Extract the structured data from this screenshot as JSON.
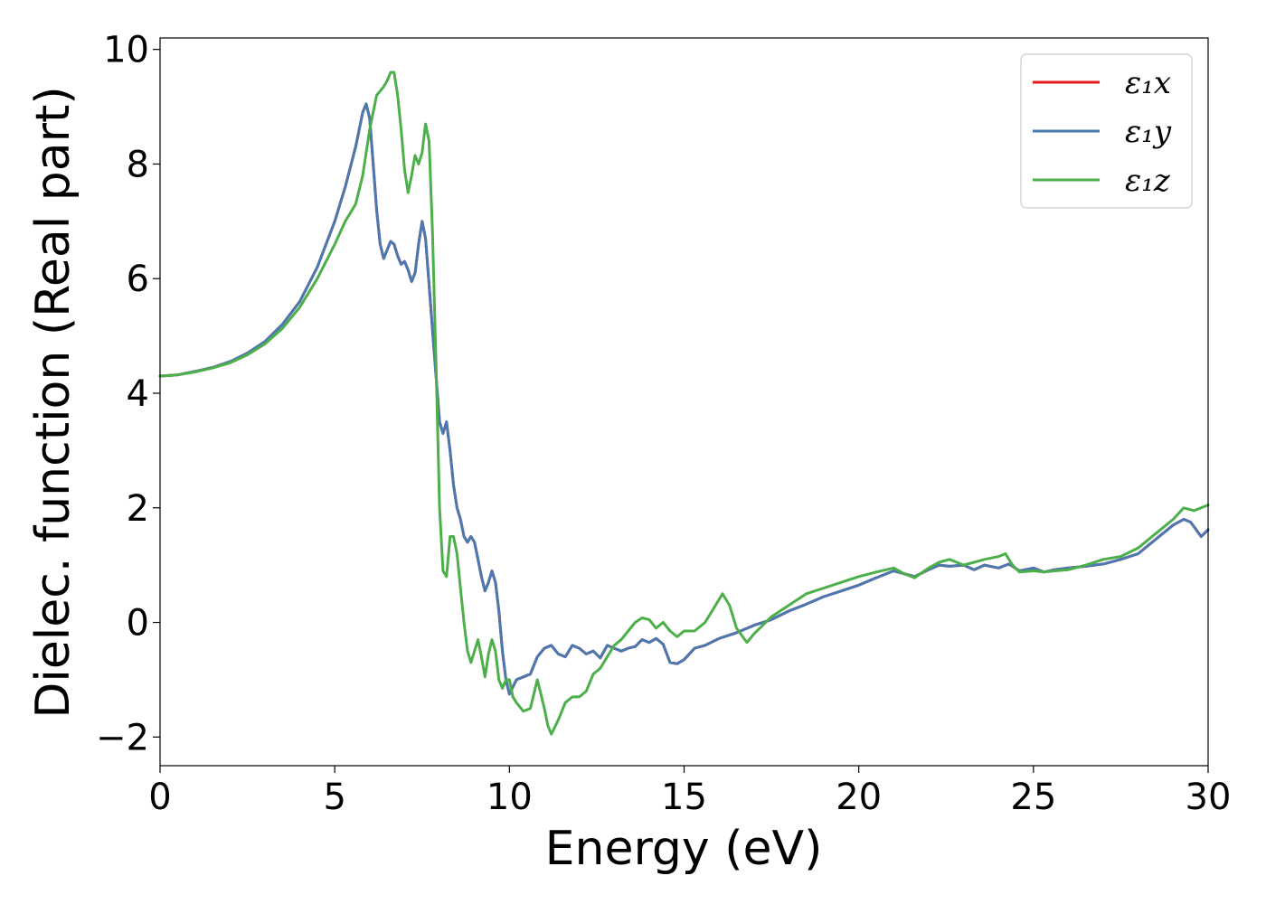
{
  "chart_data": {
    "type": "line",
    "xlabel": "Energy (eV)",
    "ylabel": "Dielec. function (Real part)",
    "xlim": [
      0,
      30
    ],
    "ylim": [
      -2.5,
      10.2
    ],
    "xticks": [
      0,
      5,
      10,
      15,
      20,
      25,
      30
    ],
    "xtick_labels": [
      "0",
      "5",
      "10",
      "15",
      "20",
      "25",
      "30"
    ],
    "yticks": [
      -2,
      0,
      2,
      4,
      6,
      8,
      10
    ],
    "ytick_labels": [
      "−2",
      "0",
      "2",
      "4",
      "6",
      "8",
      "10"
    ],
    "grid": false,
    "legend_position": "top-right",
    "series": [
      {
        "name": "ε₁x",
        "color": "#e41a1c",
        "x": [
          0,
          0.5,
          1,
          1.5,
          2,
          2.5,
          3,
          3.5,
          4,
          4.5,
          5,
          5.3,
          5.6,
          5.8,
          5.9,
          6.0,
          6.1,
          6.2,
          6.3,
          6.4,
          6.5,
          6.6,
          6.7,
          6.8,
          6.9,
          7.0,
          7.1,
          7.2,
          7.3,
          7.4,
          7.5,
          7.6,
          7.7,
          7.8,
          7.9,
          8.0,
          8.1,
          8.2,
          8.3,
          8.4,
          8.5,
          8.6,
          8.7,
          8.8,
          8.9,
          9.0,
          9.1,
          9.2,
          9.3,
          9.4,
          9.5,
          9.6,
          9.7,
          9.8,
          9.9,
          10.0,
          10.2,
          10.4,
          10.6,
          10.8,
          11.0,
          11.2,
          11.4,
          11.6,
          11.8,
          12.0,
          12.2,
          12.4,
          12.6,
          12.8,
          13.0,
          13.2,
          13.4,
          13.6,
          13.8,
          14.0,
          14.2,
          14.4,
          14.6,
          14.8,
          15.0,
          15.3,
          15.6,
          16.0,
          16.5,
          17.0,
          17.5,
          18.0,
          18.5,
          19.0,
          19.5,
          20.0,
          20.5,
          21.0,
          21.3,
          21.6,
          22.0,
          22.3,
          22.6,
          23.0,
          23.3,
          23.6,
          24.0,
          24.3,
          24.6,
          25.0,
          25.3,
          25.6,
          26.0,
          26.5,
          27.0,
          27.5,
          28.0,
          28.5,
          29.0,
          29.3,
          29.5,
          29.8,
          30.0
        ],
        "y": [
          4.3,
          4.32,
          4.38,
          4.45,
          4.55,
          4.7,
          4.9,
          5.2,
          5.6,
          6.2,
          7.0,
          7.6,
          8.3,
          8.9,
          9.05,
          8.8,
          8.0,
          7.2,
          6.6,
          6.35,
          6.5,
          6.65,
          6.6,
          6.4,
          6.25,
          6.3,
          6.15,
          5.95,
          6.1,
          6.6,
          7.0,
          6.7,
          5.9,
          5.1,
          4.3,
          3.5,
          3.3,
          3.5,
          3.0,
          2.4,
          2.0,
          1.8,
          1.5,
          1.4,
          1.5,
          1.4,
          1.1,
          0.8,
          0.55,
          0.7,
          0.9,
          0.7,
          0.2,
          -0.5,
          -1.0,
          -1.25,
          -1.0,
          -0.95,
          -0.9,
          -0.6,
          -0.45,
          -0.4,
          -0.55,
          -0.6,
          -0.4,
          -0.45,
          -0.55,
          -0.5,
          -0.62,
          -0.4,
          -0.45,
          -0.5,
          -0.45,
          -0.42,
          -0.3,
          -0.35,
          -0.28,
          -0.38,
          -0.7,
          -0.72,
          -0.65,
          -0.45,
          -0.4,
          -0.28,
          -0.18,
          -0.05,
          0.05,
          0.2,
          0.32,
          0.45,
          0.55,
          0.65,
          0.78,
          0.9,
          0.85,
          0.8,
          0.92,
          1.0,
          0.98,
          1.0,
          0.92,
          1.0,
          0.95,
          1.02,
          0.9,
          0.95,
          0.88,
          0.92,
          0.95,
          0.98,
          1.02,
          1.1,
          1.2,
          1.45,
          1.7,
          1.8,
          1.75,
          1.5,
          1.62
        ]
      },
      {
        "name": "ε₁y",
        "color": "#4a78b0",
        "x": [
          0,
          0.5,
          1,
          1.5,
          2,
          2.5,
          3,
          3.5,
          4,
          4.5,
          5,
          5.3,
          5.6,
          5.8,
          5.9,
          6.0,
          6.1,
          6.2,
          6.3,
          6.4,
          6.5,
          6.6,
          6.7,
          6.8,
          6.9,
          7.0,
          7.1,
          7.2,
          7.3,
          7.4,
          7.5,
          7.6,
          7.7,
          7.8,
          7.9,
          8.0,
          8.1,
          8.2,
          8.3,
          8.4,
          8.5,
          8.6,
          8.7,
          8.8,
          8.9,
          9.0,
          9.1,
          9.2,
          9.3,
          9.4,
          9.5,
          9.6,
          9.7,
          9.8,
          9.9,
          10.0,
          10.2,
          10.4,
          10.6,
          10.8,
          11.0,
          11.2,
          11.4,
          11.6,
          11.8,
          12.0,
          12.2,
          12.4,
          12.6,
          12.8,
          13.0,
          13.2,
          13.4,
          13.6,
          13.8,
          14.0,
          14.2,
          14.4,
          14.6,
          14.8,
          15.0,
          15.3,
          15.6,
          16.0,
          16.5,
          17.0,
          17.5,
          18.0,
          18.5,
          19.0,
          19.5,
          20.0,
          20.5,
          21.0,
          21.3,
          21.6,
          22.0,
          22.3,
          22.6,
          23.0,
          23.3,
          23.6,
          24.0,
          24.3,
          24.6,
          25.0,
          25.3,
          25.6,
          26.0,
          26.5,
          27.0,
          27.5,
          28.0,
          28.5,
          29.0,
          29.3,
          29.5,
          29.8,
          30.0
        ],
        "y": [
          4.3,
          4.32,
          4.38,
          4.45,
          4.55,
          4.7,
          4.9,
          5.2,
          5.6,
          6.2,
          7.0,
          7.6,
          8.3,
          8.9,
          9.05,
          8.8,
          8.0,
          7.2,
          6.6,
          6.35,
          6.5,
          6.65,
          6.6,
          6.4,
          6.25,
          6.3,
          6.15,
          5.95,
          6.1,
          6.6,
          7.0,
          6.7,
          5.9,
          5.1,
          4.3,
          3.5,
          3.3,
          3.5,
          3.0,
          2.4,
          2.0,
          1.8,
          1.5,
          1.4,
          1.5,
          1.4,
          1.1,
          0.8,
          0.55,
          0.7,
          0.9,
          0.7,
          0.2,
          -0.5,
          -1.0,
          -1.25,
          -1.0,
          -0.95,
          -0.9,
          -0.6,
          -0.45,
          -0.4,
          -0.55,
          -0.6,
          -0.4,
          -0.45,
          -0.55,
          -0.5,
          -0.62,
          -0.4,
          -0.45,
          -0.5,
          -0.45,
          -0.42,
          -0.3,
          -0.35,
          -0.28,
          -0.38,
          -0.7,
          -0.72,
          -0.65,
          -0.45,
          -0.4,
          -0.28,
          -0.18,
          -0.05,
          0.05,
          0.2,
          0.32,
          0.45,
          0.55,
          0.65,
          0.78,
          0.9,
          0.85,
          0.8,
          0.92,
          1.0,
          0.98,
          1.0,
          0.92,
          1.0,
          0.95,
          1.02,
          0.9,
          0.95,
          0.88,
          0.92,
          0.95,
          0.98,
          1.02,
          1.1,
          1.2,
          1.45,
          1.7,
          1.8,
          1.75,
          1.5,
          1.62
        ]
      },
      {
        "name": "ε₁z",
        "color": "#4daf4a",
        "x": [
          0,
          0.5,
          1,
          1.5,
          2,
          2.5,
          3,
          3.5,
          4,
          4.5,
          5,
          5.3,
          5.6,
          5.8,
          6.0,
          6.2,
          6.4,
          6.5,
          6.6,
          6.7,
          6.8,
          6.9,
          7.0,
          7.1,
          7.2,
          7.3,
          7.4,
          7.5,
          7.6,
          7.7,
          7.8,
          7.9,
          8.0,
          8.1,
          8.2,
          8.3,
          8.4,
          8.5,
          8.6,
          8.7,
          8.8,
          8.9,
          9.0,
          9.1,
          9.2,
          9.3,
          9.4,
          9.5,
          9.6,
          9.7,
          9.8,
          9.9,
          10.0,
          10.1,
          10.2,
          10.4,
          10.6,
          10.8,
          11.0,
          11.1,
          11.2,
          11.4,
          11.6,
          11.8,
          12.0,
          12.2,
          12.4,
          12.6,
          12.8,
          13.0,
          13.2,
          13.4,
          13.6,
          13.8,
          14.0,
          14.2,
          14.4,
          14.6,
          14.8,
          15.0,
          15.3,
          15.6,
          15.9,
          16.1,
          16.3,
          16.5,
          16.8,
          17.0,
          17.5,
          18.0,
          18.5,
          19.0,
          19.5,
          20.0,
          20.5,
          21.0,
          21.3,
          21.6,
          22.0,
          22.3,
          22.6,
          23.0,
          23.3,
          23.6,
          24.0,
          24.2,
          24.4,
          24.6,
          25.0,
          25.3,
          25.6,
          26.0,
          26.5,
          27.0,
          27.5,
          28.0,
          28.5,
          29.0,
          29.3,
          29.6,
          30.0
        ],
        "y": [
          4.3,
          4.32,
          4.37,
          4.44,
          4.53,
          4.67,
          4.86,
          5.13,
          5.5,
          6.0,
          6.6,
          7.0,
          7.3,
          7.8,
          8.6,
          9.2,
          9.35,
          9.45,
          9.6,
          9.6,
          9.2,
          8.6,
          7.9,
          7.5,
          7.8,
          8.15,
          8.0,
          8.2,
          8.7,
          8.4,
          6.8,
          4.5,
          2.0,
          0.9,
          0.8,
          1.5,
          1.5,
          1.2,
          0.6,
          0.0,
          -0.5,
          -0.7,
          -0.5,
          -0.3,
          -0.6,
          -0.95,
          -0.55,
          -0.3,
          -0.5,
          -1.0,
          -1.15,
          -1.0,
          -1.0,
          -1.3,
          -1.4,
          -1.55,
          -1.5,
          -1.0,
          -1.5,
          -1.8,
          -1.95,
          -1.7,
          -1.4,
          -1.3,
          -1.3,
          -1.2,
          -0.9,
          -0.8,
          -0.6,
          -0.4,
          -0.3,
          -0.15,
          0.0,
          0.08,
          0.05,
          -0.1,
          0.0,
          -0.15,
          -0.25,
          -0.15,
          -0.15,
          0.0,
          0.3,
          0.5,
          0.3,
          -0.1,
          -0.35,
          -0.2,
          0.1,
          0.3,
          0.5,
          0.6,
          0.7,
          0.8,
          0.88,
          0.95,
          0.85,
          0.78,
          0.95,
          1.05,
          1.1,
          1.0,
          1.05,
          1.1,
          1.15,
          1.2,
          1.0,
          0.88,
          0.9,
          0.88,
          0.9,
          0.92,
          1.0,
          1.1,
          1.15,
          1.3,
          1.55,
          1.8,
          2.0,
          1.95,
          2.05
        ]
      }
    ]
  }
}
